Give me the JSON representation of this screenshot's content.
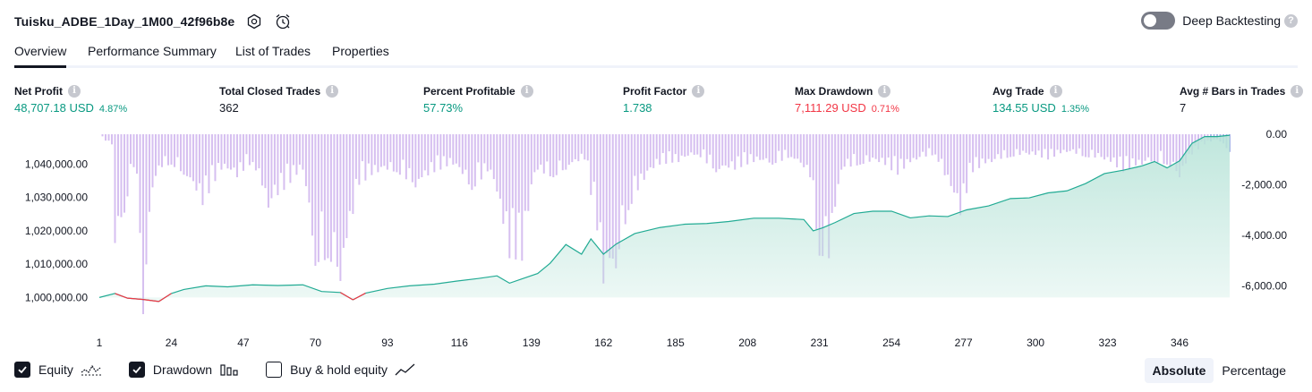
{
  "header": {
    "title": "Tuisku_ADBE_1Day_1M00_42f96b8e",
    "deep_backtesting_label": "Deep Backtesting",
    "help_glyph": "?"
  },
  "tabs": [
    {
      "label": "Overview",
      "active": true
    },
    {
      "label": "Performance Summary",
      "active": false
    },
    {
      "label": "List of Trades",
      "active": false
    },
    {
      "label": "Properties",
      "active": false
    }
  ],
  "info_glyph": "i",
  "metrics": [
    {
      "label": "Net Profit",
      "value": "48,707.18 USD",
      "pct": "4.87%",
      "color": "green"
    },
    {
      "label": "Total Closed Trades",
      "value": "362",
      "pct": "",
      "color": "dark"
    },
    {
      "label": "Percent Profitable",
      "value": "57.73%",
      "pct": "",
      "color": "green"
    },
    {
      "label": "Profit Factor",
      "value": "1.738",
      "pct": "",
      "color": "green"
    },
    {
      "label": "Max Drawdown",
      "value": "7,111.29 USD",
      "pct": "0.71%",
      "color": "red"
    },
    {
      "label": "Avg Trade",
      "value": "134.55 USD",
      "pct": "1.35%",
      "color": "green"
    },
    {
      "label": "Avg # Bars in Trades",
      "value": "7",
      "pct": "",
      "color": "dark"
    }
  ],
  "legend": [
    {
      "label": "Equity",
      "checked": true
    },
    {
      "label": "Drawdown",
      "checked": true
    },
    {
      "label": "Buy & hold equity",
      "checked": false
    }
  ],
  "scale_toggle": {
    "options": [
      "Absolute",
      "Percentage"
    ],
    "active": "Absolute"
  },
  "colors": {
    "equity_line": "#22ab94",
    "equity_fill": "#b9e4d9",
    "equity_below": "#f23645",
    "drawdown_bar": "#d6bff0",
    "drawdown_bar_last": "#a9b6e8"
  },
  "chart_data": {
    "type": "area",
    "x_range": [
      1,
      362
    ],
    "x_ticks": [
      1,
      24,
      47,
      70,
      93,
      116,
      139,
      162,
      185,
      208,
      231,
      254,
      277,
      300,
      323,
      346
    ],
    "left_axis": {
      "ylim": [
        995000,
        1049000
      ],
      "ticks": [
        1000000,
        1010000,
        1020000,
        1030000,
        1040000
      ],
      "tick_labels": [
        "1,000,000.00",
        "1,010,000.00",
        "1,020,000.00",
        "1,030,000.00",
        "1,040,000.00"
      ]
    },
    "right_axis": {
      "ylim": [
        -7111.29,
        0
      ],
      "ticks": [
        0,
        -2000,
        -4000,
        -6000
      ],
      "tick_labels": [
        "0.00",
        "-2,000.00",
        "-4,000.00",
        "-6,000.00"
      ]
    },
    "series": [
      {
        "name": "Equity",
        "kind": "area",
        "baseline": 1000000,
        "x": [
          1,
          6,
          10,
          15,
          20,
          24,
          28,
          35,
          42,
          50,
          58,
          66,
          72,
          78,
          82,
          86,
          93,
          100,
          108,
          115,
          122,
          128,
          132,
          136,
          141,
          145,
          150,
          155,
          158,
          162,
          166,
          172,
          180,
          188,
          195,
          202,
          210,
          218,
          226,
          229,
          232,
          236,
          242,
          248,
          254,
          260,
          266,
          272,
          278,
          285,
          292,
          298,
          304,
          310,
          316,
          322,
          328,
          334,
          338,
          342,
          346,
          350,
          354,
          358,
          362
        ],
        "values": [
          1000000,
          1001200,
          999800,
          999400,
          998800,
          1001200,
          1002400,
          1003500,
          1003200,
          1003800,
          1003600,
          1003800,
          1001800,
          1001500,
          999300,
          1001300,
          1002700,
          1003500,
          1004000,
          1004900,
          1005700,
          1006500,
          1004300,
          1005600,
          1007200,
          1010300,
          1015900,
          1013000,
          1017600,
          1013000,
          1016000,
          1019200,
          1021000,
          1022000,
          1022200,
          1022800,
          1023800,
          1023800,
          1023400,
          1020000,
          1020900,
          1022500,
          1025200,
          1025900,
          1025900,
          1023900,
          1024500,
          1024300,
          1026300,
          1027500,
          1029700,
          1029900,
          1031400,
          1032000,
          1034200,
          1037200,
          1038200,
          1039500,
          1040800,
          1038900,
          1041000,
          1046300,
          1048300,
          1048300,
          1048700
        ]
      },
      {
        "name": "Drawdown",
        "kind": "bar_down",
        "x": [
          1,
          3,
          5,
          6,
          9,
          12,
          14,
          15,
          18,
          21,
          24,
          28,
          34,
          40,
          45,
          50,
          55,
          60,
          66,
          70,
          74,
          78,
          84,
          90,
          96,
          102,
          108,
          114,
          120,
          126,
          132,
          136,
          140,
          146,
          150,
          156,
          160,
          162,
          166,
          170,
          175,
          180,
          186,
          192,
          198,
          204,
          210,
          216,
          222,
          228,
          231,
          234,
          238,
          244,
          250,
          256,
          262,
          268,
          276,
          280,
          286,
          292,
          298,
          304,
          310,
          316,
          322,
          328,
          334,
          338,
          342,
          346,
          350,
          354,
          358,
          362
        ],
        "values": [
          0,
          -250,
          -400,
          -4300,
          -3100,
          -1300,
          -3900,
          -7111.29,
          -2100,
          -1300,
          -1200,
          -1600,
          -2800,
          -1400,
          -1700,
          -1100,
          -2900,
          -2200,
          -1400,
          -5200,
          -4900,
          -5800,
          -2000,
          -1500,
          -1500,
          -2100,
          -1500,
          -1200,
          -2200,
          -1400,
          -4900,
          -5000,
          -1500,
          -1700,
          -1400,
          -1000,
          -3800,
          -5900,
          -5300,
          -3000,
          -1800,
          -1200,
          -1100,
          -800,
          -1500,
          -1400,
          -1100,
          -1200,
          -900,
          -1700,
          -4800,
          -4900,
          -1400,
          -1200,
          -1100,
          -1600,
          -1000,
          -800,
          -3200,
          -1500,
          -1100,
          -900,
          -800,
          -1000,
          -700,
          -900,
          -1000,
          -1500,
          -1200,
          -1100,
          -1200,
          -1700,
          -800,
          -400,
          -200,
          -700
        ]
      }
    ]
  }
}
